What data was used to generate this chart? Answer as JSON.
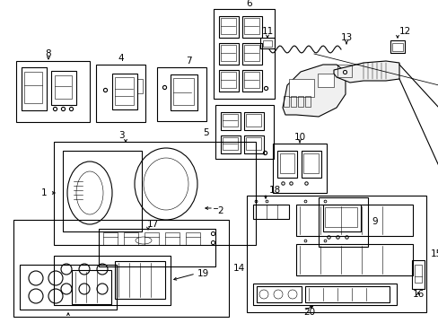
{
  "background_color": "#ffffff",
  "line_color": "#000000",
  "fig_width": 4.89,
  "fig_height": 3.6,
  "dpi": 100,
  "lw": 0.8,
  "lw_thin": 0.4,
  "fontsize": 7.5
}
